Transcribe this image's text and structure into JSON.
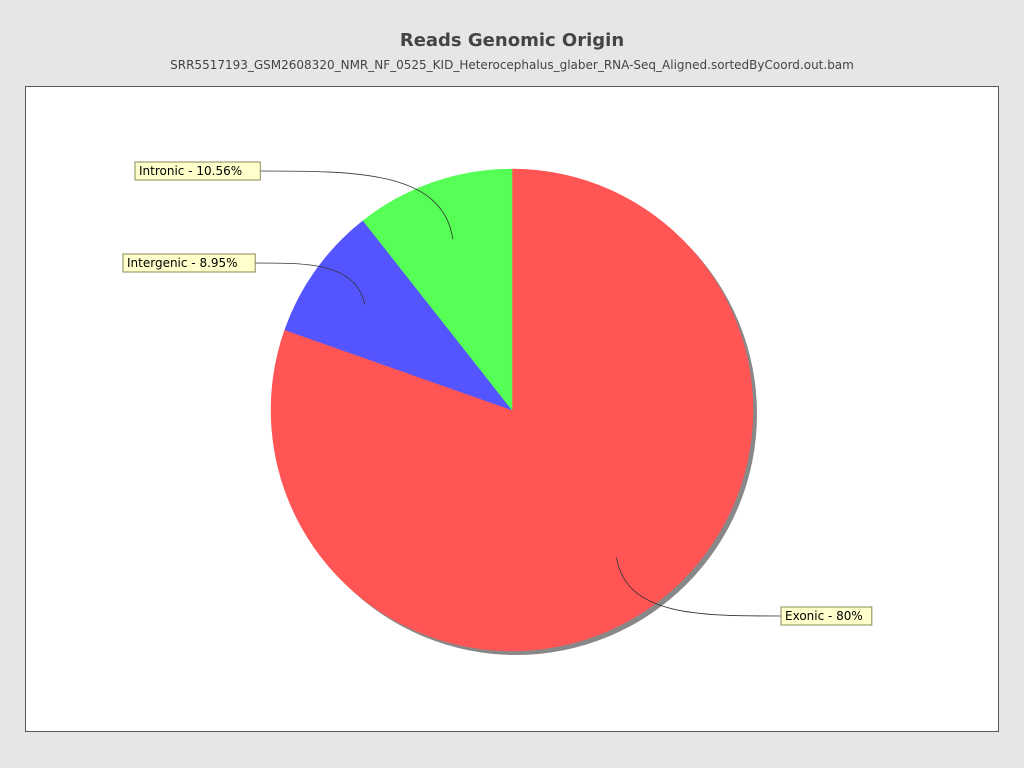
{
  "chart_data": {
    "type": "pie",
    "title": "Reads Genomic Origin",
    "subtitle": "SRR5517193_GSM2608320_NMR_NF_0525_KID_Heterocephalus_glaber_RNA-Seq_Aligned.sortedByCoord.out.bam",
    "slices": [
      {
        "name": "Exonic",
        "value": 80.0,
        "label": "Exonic - 80%",
        "color": "#ff5555"
      },
      {
        "name": "Intergenic",
        "value": 8.95,
        "label": "Intergenic - 8.95%",
        "color": "#5555ff"
      },
      {
        "name": "Intronic",
        "value": 10.56,
        "label": "Intronic - 10.56%",
        "color": "#55ff55"
      }
    ],
    "legend": "none",
    "label_style": {
      "background": "#ffffcc",
      "border": "#8a8a5a"
    },
    "shadow_color": "#888888"
  }
}
